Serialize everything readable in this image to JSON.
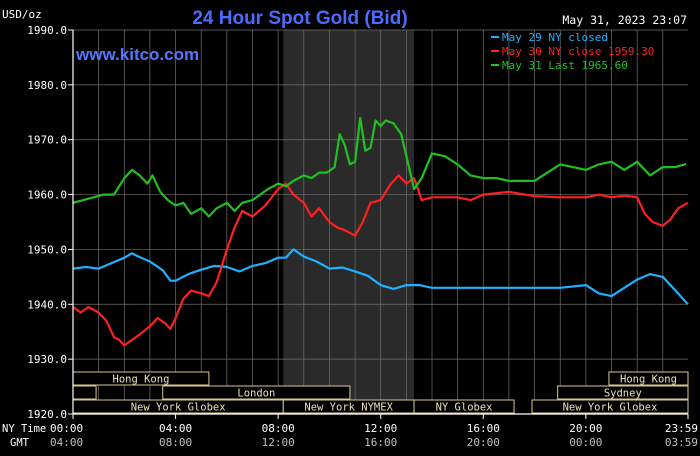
{
  "chart_data": {
    "type": "line",
    "title": "24 Hour Spot Gold (Bid)",
    "unit_label": "USD/oz",
    "brand": "www.kitco.com",
    "timestamp": "May 31, 2023 23:07",
    "ylim": [
      1920,
      1990
    ],
    "y_ticks": [
      "1990.0",
      "1980.0",
      "1970.0",
      "1960.0",
      "1950.0",
      "1940.0",
      "1930.0",
      "1920.0"
    ],
    "y_tick_values": [
      1990,
      1980,
      1970,
      1960,
      1950,
      1940,
      1930,
      1920
    ],
    "x_ny_label": "NY Time",
    "x_gmt_label": "GMT",
    "x_ticks_ny": [
      "00:00",
      "04:00",
      "08:00",
      "12:00",
      "16:00",
      "20:00",
      "23:59"
    ],
    "x_ticks_gmt": [
      "04:00",
      "08:00",
      "12:00",
      "16:00",
      "20:00",
      "00:00",
      "03:59"
    ],
    "x_tick_hours": [
      0,
      4,
      8,
      12,
      16,
      20,
      23.983
    ],
    "xlim_hours": [
      0,
      23.983
    ],
    "shaded_range_hours": [
      8.2,
      13.3
    ],
    "grid": true,
    "legend_position": "top-right",
    "colors": {
      "background": "#000000",
      "grid": "#707070",
      "axis": "#ffffff",
      "title": "#4a6cff",
      "brand": "#5577ff",
      "shade": "#2a2a2a",
      "session_fill": "#000000",
      "session_border": "#d8c890",
      "session_text": "#e8e0b8"
    },
    "series": [
      {
        "name": "May 29 NY closed",
        "color": "#20b0ff",
        "x": [
          0,
          0.5,
          1,
          1.5,
          2,
          2.3,
          2.5,
          3,
          3.5,
          3.8,
          4,
          4.5,
          5,
          5.5,
          6,
          6.5,
          7,
          7.5,
          8,
          8.3,
          8.6,
          9,
          9.5,
          10,
          10.5,
          11,
          11.5,
          12,
          12.5,
          13,
          13.5,
          14,
          15,
          16,
          17,
          18,
          19,
          20,
          20.5,
          21,
          21.5,
          22,
          22.5,
          23,
          23.5,
          23.98
        ],
        "values": [
          1946.5,
          1946.8,
          1946.5,
          1947.5,
          1948.5,
          1949.3,
          1948.8,
          1947.8,
          1946.2,
          1944.3,
          1944.3,
          1945.5,
          1946.3,
          1947,
          1946.8,
          1946,
          1947,
          1947.5,
          1948.5,
          1948.5,
          1950,
          1948.7,
          1947.8,
          1946.5,
          1946.7,
          1946,
          1945.2,
          1943.5,
          1942.8,
          1943.5,
          1943.5,
          1943,
          1943,
          1943,
          1943,
          1943,
          1943,
          1943.5,
          1942,
          1941.5,
          1943,
          1944.5,
          1945.5,
          1945,
          1942.5,
          1940
        ]
      },
      {
        "name": "May 30 NY close 1959.30",
        "color": "#ff2020",
        "x": [
          0,
          0.3,
          0.6,
          1,
          1.3,
          1.6,
          1.8,
          2,
          2.3,
          2.6,
          3,
          3.3,
          3.6,
          3.8,
          4,
          4.3,
          4.6,
          5,
          5.3,
          5.6,
          6,
          6.3,
          6.6,
          7,
          7.5,
          8,
          8.3,
          8.6,
          9,
          9.3,
          9.6,
          10,
          10.3,
          10.6,
          11,
          11.3,
          11.6,
          12,
          12.4,
          12.7,
          13,
          13.3,
          13.6,
          14,
          14.5,
          15,
          15.5,
          16,
          17,
          18,
          19,
          20,
          20.5,
          21,
          21.5,
          22,
          22.3,
          22.6,
          23,
          23.3,
          23.6,
          23.98
        ],
        "values": [
          1939.5,
          1938.5,
          1939.5,
          1938.5,
          1937,
          1934,
          1933.5,
          1932.5,
          1933.5,
          1934.5,
          1936,
          1937.5,
          1936.5,
          1935.5,
          1937.5,
          1941,
          1942.5,
          1942,
          1941.5,
          1944,
          1950,
          1954,
          1957,
          1956,
          1958,
          1961,
          1962,
          1960,
          1958.5,
          1956,
          1957.5,
          1955,
          1954,
          1953.5,
          1952.5,
          1955,
          1958.5,
          1959,
          1962,
          1963.5,
          1962,
          1963,
          1959,
          1959.5,
          1959.5,
          1959.5,
          1959,
          1960,
          1960.5,
          1959.7,
          1959.5,
          1959.5,
          1960,
          1959.5,
          1959.8,
          1959.5,
          1956.5,
          1955,
          1954.3,
          1955.5,
          1957.5,
          1958.5
        ]
      },
      {
        "name": "May 31 Last 1965.60",
        "color": "#20c020",
        "x": [
          0,
          0.4,
          0.8,
          1.2,
          1.6,
          2,
          2.3,
          2.6,
          2.9,
          3.1,
          3.4,
          3.7,
          4,
          4.3,
          4.6,
          5,
          5.3,
          5.6,
          6,
          6.3,
          6.6,
          7,
          7.3,
          7.6,
          8,
          8.3,
          8.6,
          9,
          9.3,
          9.6,
          9.9,
          10.2,
          10.4,
          10.6,
          10.8,
          11,
          11.2,
          11.4,
          11.6,
          11.8,
          12,
          12.2,
          12.5,
          12.8,
          13,
          13.3,
          13.6,
          14,
          14.5,
          15,
          15.5,
          16,
          16.5,
          17,
          17.5,
          18,
          18.5,
          19,
          19.5,
          20,
          20.5,
          21,
          21.5,
          22,
          22.5,
          23,
          23.5,
          23.9
        ],
        "values": [
          1958.5,
          1959,
          1959.5,
          1960,
          1960,
          1963,
          1964.5,
          1963.5,
          1962,
          1963.5,
          1960.5,
          1959,
          1958,
          1958.5,
          1956.5,
          1957.5,
          1956,
          1957.5,
          1958.5,
          1957,
          1958.5,
          1959,
          1960,
          1961,
          1962,
          1961.5,
          1962.5,
          1963.5,
          1963,
          1964,
          1964,
          1965,
          1971,
          1969,
          1965.5,
          1966,
          1974,
          1968,
          1968.5,
          1973.5,
          1972.5,
          1973.5,
          1973,
          1971,
          1967,
          1961,
          1963,
          1967.5,
          1967,
          1965.5,
          1963.5,
          1963,
          1963,
          1962.5,
          1962.5,
          1962.5,
          1964,
          1965.5,
          1965,
          1964.5,
          1965.5,
          1966,
          1964.5,
          1966,
          1963.5,
          1965,
          1965,
          1965.6
        ]
      }
    ],
    "sessions": [
      {
        "label": "Hong Kong",
        "row": 0,
        "start_h": 0,
        "end_h": 5.3
      },
      {
        "label": "",
        "row": 1,
        "start_h": 0,
        "end_h": 0.9
      },
      {
        "label": "London",
        "row": 1,
        "start_h": 3.5,
        "end_h": 10.8
      },
      {
        "label": "New York Globex",
        "row": 2,
        "start_h": 0,
        "end_h": 8.2
      },
      {
        "label": "New York NYMEX",
        "row": 2,
        "start_h": 8.2,
        "end_h": 13.3
      },
      {
        "label": "NY Globex",
        "row": 2,
        "start_h": 13.3,
        "end_h": 17.2
      },
      {
        "label": "New York Globex",
        "row": 2,
        "start_h": 17.9,
        "end_h": 23.983
      },
      {
        "label": "Hong Kong",
        "row": 0,
        "start_h": 20.9,
        "end_h": 23.983
      },
      {
        "label": "Sydney",
        "row": 1,
        "start_h": 18.9,
        "end_h": 23.983
      }
    ]
  }
}
